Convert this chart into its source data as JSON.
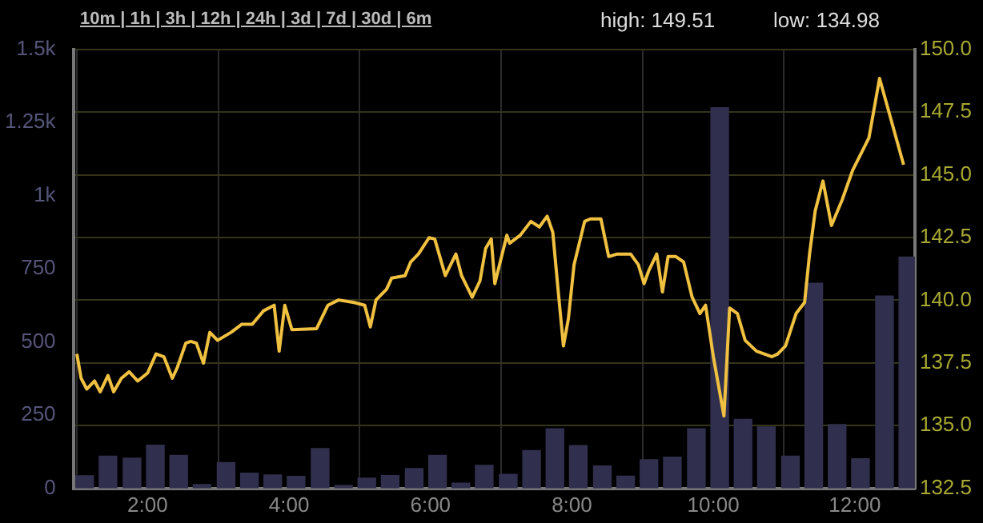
{
  "chart_data": {
    "type": "bar",
    "annotations": [
      "10m | 1h | 3h | 12h | 24h | 3d | 7d | 30d | 6m",
      "high: 149.51",
      "low: 134.98"
    ],
    "x": [
      1.11,
      1.44,
      1.78,
      2.11,
      2.44,
      2.77,
      3.11,
      3.44,
      3.77,
      4.1,
      4.44,
      4.77,
      5.1,
      5.43,
      5.77,
      6.1,
      6.43,
      6.76,
      7.1,
      7.43,
      7.76,
      8.09,
      8.43,
      8.76,
      9.09,
      9.42,
      9.76,
      10.09,
      10.42,
      10.75,
      11.09,
      11.42,
      11.75,
      12.08,
      12.42,
      12.75
    ],
    "series": [
      {
        "color": "#30304e",
        "values": [
          45,
          112,
          105,
          150,
          115,
          15,
          90,
          54,
          48,
          43,
          138,
          12,
          37,
          46,
          70,
          115,
          20,
          81,
          50,
          131,
          206,
          148,
          79,
          44,
          100,
          109,
          206,
          1302,
          238,
          212,
          112,
          703,
          220,
          103,
          659,
          792
        ]
      },
      {
        "type": "line",
        "axis": "y2",
        "color": "#f0c040",
        "x": [
          1.0,
          1.06,
          1.14,
          1.25,
          1.33,
          1.44,
          1.52,
          1.63,
          1.74,
          1.86,
          2.0,
          2.12,
          2.23,
          2.35,
          2.42,
          2.54,
          2.61,
          2.69,
          2.79,
          2.88,
          2.99,
          3.18,
          3.33,
          3.48,
          3.64,
          3.79,
          3.86,
          3.94,
          4.04,
          4.39,
          4.55,
          4.7,
          4.92,
          5.07,
          5.15,
          5.23,
          5.38,
          5.45,
          5.64,
          5.72,
          5.83,
          5.98,
          6.06,
          6.21,
          6.36,
          6.44,
          6.59,
          6.7,
          6.78,
          6.86,
          6.91,
          7.08,
          7.12,
          7.27,
          7.42,
          7.54,
          7.65,
          7.73,
          7.8,
          7.88,
          7.95,
          8.03,
          8.18,
          8.26,
          8.41,
          8.52,
          8.64,
          8.83,
          8.94,
          9.02,
          9.09,
          9.2,
          9.28,
          9.36,
          9.47,
          9.58,
          9.7,
          9.81,
          9.89,
          10.0,
          10.15,
          10.23,
          10.34,
          10.45,
          10.61,
          10.83,
          10.91,
          11.02,
          11.17,
          11.29,
          11.36,
          11.44,
          11.55,
          11.67,
          11.82,
          11.97,
          12.2,
          12.35,
          12.69
        ],
        "values": [
          137.86,
          136.89,
          136.46,
          136.78,
          136.35,
          137.0,
          136.35,
          136.89,
          137.15,
          136.78,
          137.1,
          137.86,
          137.75,
          136.89,
          137.32,
          138.29,
          138.36,
          138.29,
          137.49,
          138.72,
          138.4,
          138.72,
          139.04,
          139.04,
          139.58,
          139.8,
          137.97,
          139.8,
          138.83,
          138.87,
          139.8,
          140.01,
          139.91,
          139.8,
          138.94,
          140.01,
          140.44,
          140.88,
          140.98,
          141.52,
          141.84,
          142.49,
          142.44,
          140.98,
          141.84,
          140.98,
          140.12,
          140.77,
          142.06,
          142.44,
          140.66,
          142.59,
          142.27,
          142.59,
          143.14,
          142.92,
          143.35,
          142.7,
          140.55,
          138.18,
          139.26,
          141.41,
          143.14,
          143.24,
          143.24,
          141.74,
          141.84,
          141.84,
          141.41,
          140.66,
          141.2,
          141.84,
          140.33,
          141.74,
          141.74,
          141.52,
          140.12,
          139.47,
          139.8,
          137.75,
          135.39,
          139.69,
          139.47,
          138.4,
          137.97,
          137.75,
          137.86,
          138.18,
          139.47,
          139.91,
          141.84,
          143.56,
          144.75,
          142.98,
          143.99,
          145.18,
          146.47,
          148.84,
          145.4
        ]
      }
    ],
    "xlim": [
      0.95,
      12.85
    ],
    "xticks": [
      {
        "value": 2,
        "label": "2:00"
      },
      {
        "value": 4,
        "label": "4:00"
      },
      {
        "value": 6,
        "label": "6:00"
      },
      {
        "value": 8,
        "label": "8:00"
      },
      {
        "value": 10,
        "label": "10:00"
      },
      {
        "value": 12,
        "label": "12:00"
      }
    ],
    "ylim": [
      0,
      1500
    ],
    "yticks": [
      0,
      250,
      500,
      750,
      {
        "value": 1000,
        "label": "1k"
      },
      {
        "value": 1250,
        "label": "1.25k"
      },
      {
        "value": 1500,
        "label": "1.5k"
      }
    ],
    "y2lim": [
      132.5,
      150
    ],
    "y2ticks": [
      132.5,
      {
        "value": 135,
        "label": "135.0"
      },
      137.5,
      {
        "value": 140,
        "label": "140.0"
      },
      142.5,
      {
        "value": 145,
        "label": "145.0"
      },
      147.5,
      {
        "value": 150,
        "label": "150.0"
      }
    ],
    "grid": true,
    "legend": false,
    "marker": "none"
  }
}
